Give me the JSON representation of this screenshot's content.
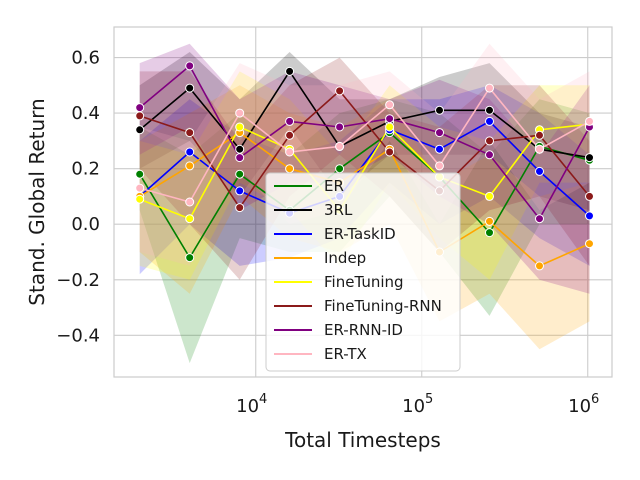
{
  "chart_data": {
    "type": "line",
    "xlabel": "Total Timesteps",
    "ylabel": "Stand. Global Return",
    "xscale": "log",
    "xlim": [
      1400,
      1400000
    ],
    "ylim": [
      -0.55,
      0.71
    ],
    "yticks": [
      -0.4,
      -0.2,
      0.0,
      0.2,
      0.4,
      0.6
    ],
    "ytick_labels": [
      "−0.4",
      "−0.2",
      "0.0",
      "0.2",
      "0.4",
      "0.6"
    ],
    "xticks": [
      {
        "value": 10000,
        "base": "10",
        "exp": "4"
      },
      {
        "value": 100000,
        "base": "10",
        "exp": "5"
      },
      {
        "value": 1000000,
        "base": "10",
        "exp": "6"
      }
    ],
    "grid": true,
    "legend_position": "lower center",
    "x": [
      2000,
      4000,
      8000,
      16000,
      32000,
      64000,
      128000,
      256000,
      512000,
      1024000
    ],
    "series": [
      {
        "name": "ER",
        "color": "#008000",
        "values": [
          0.18,
          -0.12,
          0.18,
          0.05,
          0.2,
          0.33,
          0.17,
          -0.03,
          0.28,
          0.23
        ],
        "lower": [
          0.05,
          -0.5,
          -0.05,
          -0.1,
          -0.1,
          0.1,
          -0.1,
          -0.33,
          0.0,
          0.0
        ],
        "upper": [
          0.35,
          0.25,
          0.4,
          0.25,
          0.4,
          0.45,
          0.4,
          0.25,
          0.45,
          0.4
        ]
      },
      {
        "name": "3RL",
        "color": "#000000",
        "values": [
          0.34,
          0.49,
          0.27,
          0.55,
          0.28,
          0.37,
          0.41,
          0.41,
          0.27,
          0.24
        ],
        "lower": [
          0.2,
          0.3,
          0.1,
          0.35,
          0.1,
          0.25,
          0.25,
          0.25,
          0.1,
          0.05
        ],
        "upper": [
          0.5,
          0.62,
          0.45,
          0.62,
          0.45,
          0.45,
          0.53,
          0.58,
          0.4,
          0.35
        ]
      },
      {
        "name": "ER-TaskID",
        "color": "#0000ff",
        "values": [
          0.1,
          0.26,
          0.12,
          0.04,
          0.1,
          0.34,
          0.27,
          0.37,
          0.19,
          0.03
        ],
        "lower": [
          -0.18,
          0.0,
          -0.15,
          -0.12,
          -0.05,
          0.15,
          0.0,
          0.1,
          -0.05,
          -0.15
        ],
        "upper": [
          0.3,
          0.45,
          0.32,
          0.25,
          0.3,
          0.45,
          0.45,
          0.5,
          0.4,
          0.25
        ]
      },
      {
        "name": "Indep",
        "color": "#ffa500",
        "values": [
          0.1,
          0.21,
          0.33,
          0.2,
          0.15,
          0.27,
          -0.1,
          0.01,
          -0.15,
          -0.07
        ],
        "lower": [
          -0.1,
          -0.25,
          0.1,
          -0.05,
          -0.1,
          0.0,
          -0.35,
          -0.25,
          -0.45,
          -0.35
        ],
        "upper": [
          0.3,
          0.4,
          0.5,
          0.4,
          0.35,
          0.45,
          0.15,
          0.25,
          0.1,
          0.15
        ]
      },
      {
        "name": "FineTuning",
        "color": "#ffff00",
        "values": [
          0.09,
          0.02,
          0.35,
          0.27,
          0.05,
          0.35,
          0.17,
          0.1,
          0.34,
          0.36
        ],
        "lower": [
          -0.15,
          -0.2,
          0.15,
          0.05,
          -0.15,
          0.15,
          -0.05,
          -0.2,
          0.15,
          0.15
        ],
        "upper": [
          0.3,
          0.25,
          0.55,
          0.45,
          0.25,
          0.5,
          0.35,
          0.3,
          0.5,
          0.5
        ]
      },
      {
        "name": "FineTuning-RNN",
        "color": "#8b1a1a",
        "values": [
          0.39,
          0.33,
          0.06,
          0.32,
          0.48,
          0.26,
          0.12,
          0.3,
          0.32,
          0.1
        ],
        "lower": [
          0.2,
          0.0,
          -0.2,
          0.1,
          0.25,
          0.1,
          -0.1,
          0.05,
          0.1,
          -0.15
        ],
        "upper": [
          0.55,
          0.55,
          0.3,
          0.5,
          0.6,
          0.4,
          0.35,
          0.5,
          0.5,
          0.3
        ]
      },
      {
        "name": "ER-RNN-ID",
        "color": "#800080",
        "values": [
          0.42,
          0.57,
          0.24,
          0.37,
          0.35,
          0.38,
          0.33,
          0.25,
          0.02,
          0.35
        ],
        "lower": [
          0.25,
          0.35,
          0.05,
          0.15,
          0.15,
          0.25,
          0.1,
          0.0,
          -0.2,
          -0.25
        ],
        "upper": [
          0.58,
          0.65,
          0.45,
          0.55,
          0.5,
          0.45,
          0.52,
          0.45,
          0.25,
          0.5
        ]
      },
      {
        "name": "ER-TX",
        "color": "#ffb6c1",
        "values": [
          0.13,
          0.08,
          0.4,
          0.26,
          0.28,
          0.43,
          0.21,
          0.49,
          0.27,
          0.37
        ],
        "lower": [
          -0.1,
          -0.15,
          0.2,
          0.0,
          0.05,
          0.3,
          0.0,
          0.3,
          0.05,
          0.15
        ],
        "upper": [
          0.35,
          0.3,
          0.58,
          0.5,
          0.5,
          0.55,
          0.4,
          0.65,
          0.45,
          0.55
        ]
      }
    ]
  }
}
